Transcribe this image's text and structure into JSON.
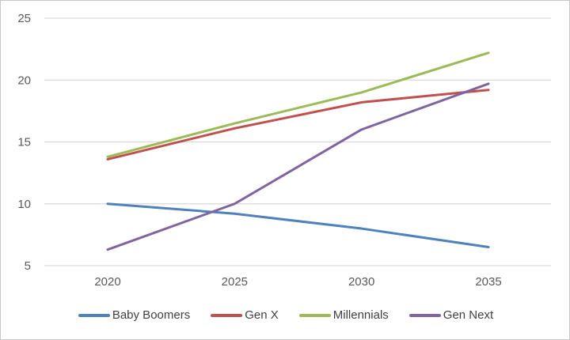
{
  "chart_data": {
    "type": "line",
    "title": "",
    "xlabel": "",
    "ylabel": "",
    "categories": [
      "2020",
      "2025",
      "2030",
      "2035"
    ],
    "y_ticks": [
      5,
      10,
      15,
      20,
      25
    ],
    "ylim": [
      5,
      25
    ],
    "grid": "horizontal",
    "legend_position": "bottom",
    "series": [
      {
        "name": "Baby Boomers",
        "color": "#4F81BD",
        "values": [
          10,
          9.2,
          8,
          6.5
        ]
      },
      {
        "name": "Gen X",
        "color": "#C0504D",
        "values": [
          13.6,
          16.1,
          18.2,
          19.2
        ]
      },
      {
        "name": "Millennials",
        "color": "#9BBB59",
        "values": [
          13.8,
          16.5,
          19,
          22.2
        ]
      },
      {
        "name": "Gen Next",
        "color": "#8064A2",
        "values": [
          6.3,
          10,
          16,
          19.7
        ]
      }
    ]
  },
  "colors": {
    "background": "#FFFFFF",
    "border": "#C6C6C6",
    "gridline": "#D9D9D9",
    "axis_label": "#595959",
    "legend_text": "#3F3F3F"
  }
}
